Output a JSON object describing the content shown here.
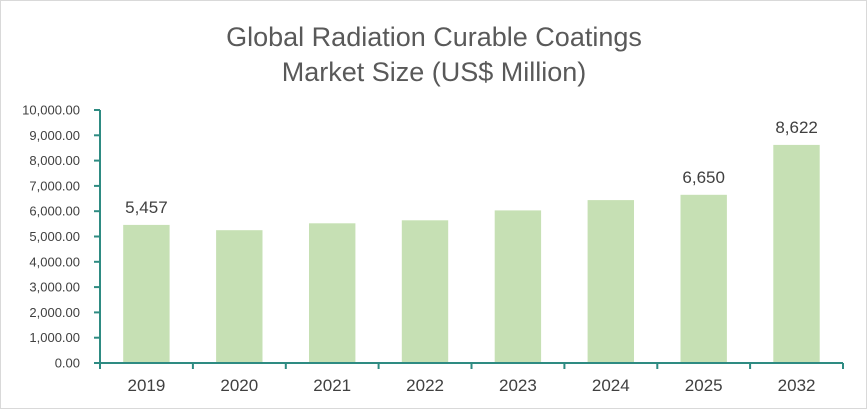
{
  "chart_data": {
    "type": "bar",
    "title_lines": [
      "Global Radiation Curable Coatings",
      "Market Size (US$ Million)"
    ],
    "categories": [
      "2019",
      "2020",
      "2021",
      "2022",
      "2023",
      "2024",
      "2025",
      "2032"
    ],
    "values": [
      5457,
      5250,
      5520,
      5640,
      6030,
      6440,
      6650,
      8622
    ],
    "data_labels": [
      {
        "index": 0,
        "text": "5,457"
      },
      {
        "index": 6,
        "text": "6,650"
      },
      {
        "index": 7,
        "text": "8,622"
      }
    ],
    "yticks": [
      "0.00",
      "1,000.00",
      "2,000.00",
      "3,000.00",
      "4,000.00",
      "5,000.00",
      "6,000.00",
      "7,000.00",
      "8,000.00",
      "9,000.00",
      "10,000.00"
    ],
    "ylim": [
      0,
      10000
    ],
    "xlabel": "",
    "ylabel": "",
    "grid": false,
    "legend": "none",
    "colors": {
      "bar": "#c6e0b4",
      "axis": "#2e8b82",
      "text": "#404040",
      "title": "#595959"
    }
  }
}
